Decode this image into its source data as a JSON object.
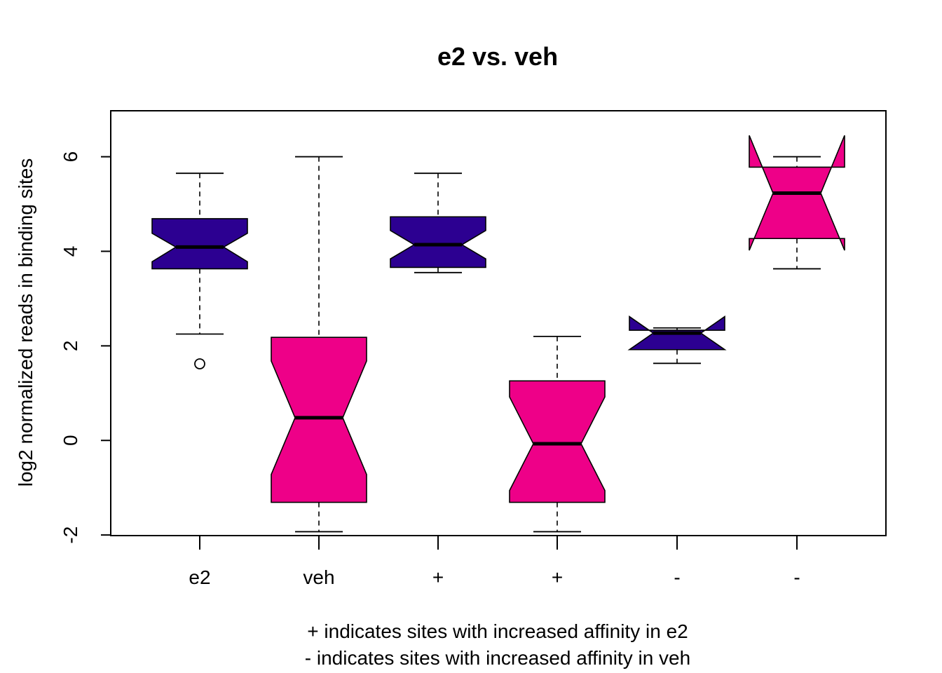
{
  "chart_data": {
    "type": "boxplot",
    "title": "e2 vs. veh",
    "ylabel": "log2 normalized reads in binding sites",
    "xlabel_lines": [
      "+ indicates sites with increased affinity in e2",
      "- indicates sites with increased affinity in veh"
    ],
    "notched": true,
    "ylim": [
      -2.25,
      6.8
    ],
    "yticks": [
      "-2",
      "0",
      "2",
      "4",
      "6"
    ],
    "colors": {
      "e2": "#2c0091",
      "veh": "#ee0088"
    },
    "boxes": [
      {
        "label": "e2",
        "group": "e2",
        "whisker_low": 2.25,
        "q1": 3.63,
        "median": 4.09,
        "q3": 4.69,
        "whisker_high": 5.65,
        "notch_low": 3.78,
        "notch_high": 4.38,
        "outliers": [
          1.62
        ]
      },
      {
        "label": "veh",
        "group": "veh",
        "whisker_low": -1.93,
        "q1": -1.31,
        "median": 0.48,
        "q3": 2.18,
        "whisker_high": 6.0,
        "notch_low": -0.72,
        "notch_high": 1.68,
        "outliers": []
      },
      {
        "label": "+",
        "group": "e2",
        "whisker_low": 3.55,
        "q1": 3.66,
        "median": 4.14,
        "q3": 4.73,
        "whisker_high": 5.65,
        "notch_low": 3.84,
        "notch_high": 4.44,
        "outliers": []
      },
      {
        "label": "+",
        "group": "veh",
        "whisker_low": -1.93,
        "q1": -1.31,
        "median": -0.07,
        "q3": 1.26,
        "whisker_high": 2.2,
        "notch_low": -1.06,
        "notch_high": 0.92,
        "outliers": []
      },
      {
        "label": "-",
        "group": "e2",
        "whisker_low": 1.63,
        "q1": 1.92,
        "median": 2.27,
        "q3": 2.33,
        "whisker_high": 2.38,
        "notch_low": 1.92,
        "notch_high": 2.62,
        "outliers": []
      },
      {
        "label": "-",
        "group": "veh",
        "whisker_low": 3.63,
        "q1": 4.27,
        "median": 5.23,
        "q3": 5.78,
        "whisker_high": 6.0,
        "notch_low": 4.02,
        "notch_high": 6.45,
        "outliers": []
      }
    ]
  }
}
